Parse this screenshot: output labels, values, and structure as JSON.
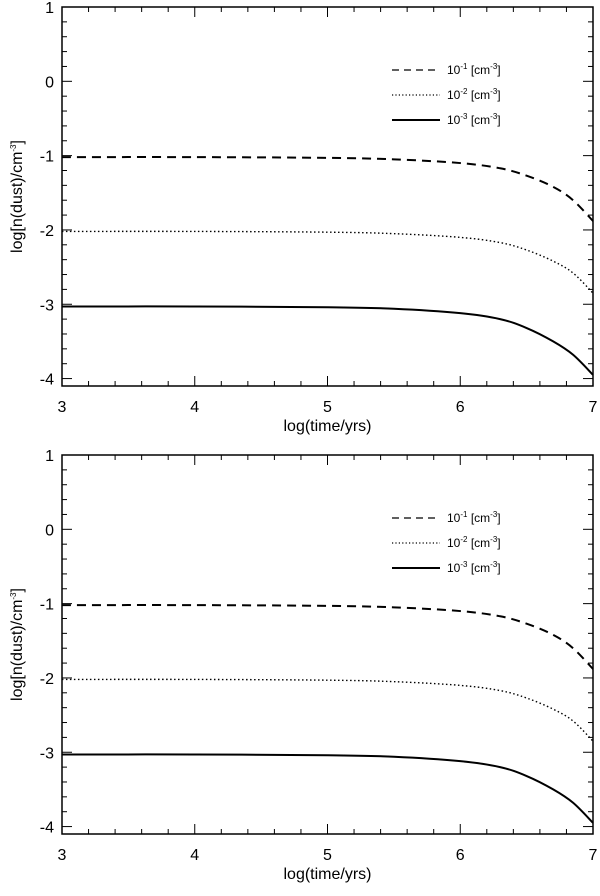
{
  "chart_data": [
    {
      "type": "line",
      "xlabel": "log(time/yrs)",
      "ylabel_parts": [
        "log[n(dust)/cm",
        "-3",
        "]"
      ],
      "xlim": [
        3,
        7
      ],
      "ylim": [
        -4.1,
        1
      ],
      "xticks": [
        "3",
        "4",
        "5",
        "6",
        "7"
      ],
      "yticks": [
        "1",
        "0",
        "-1",
        "-2",
        "-3",
        "-4"
      ],
      "grid": false,
      "legend_position": "top-right",
      "series": [
        {
          "name": "10 -1 [cm -3]",
          "legend_parts": [
            "10",
            "-1",
            " [cm",
            "-3",
            "]"
          ],
          "style": "dashed",
          "x": [
            3.0,
            4.0,
            5.0,
            5.5,
            6.0,
            6.3,
            6.5,
            6.7,
            6.85,
            7.0
          ],
          "y": [
            -1.02,
            -1.02,
            -1.03,
            -1.05,
            -1.1,
            -1.17,
            -1.27,
            -1.42,
            -1.6,
            -1.88
          ]
        },
        {
          "name": "10 -2 [cm -3]",
          "legend_parts": [
            "10",
            "-2",
            " [cm",
            "-3",
            "]"
          ],
          "style": "dotted",
          "x": [
            3.0,
            4.0,
            5.0,
            5.5,
            6.0,
            6.3,
            6.5,
            6.7,
            6.85,
            7.0
          ],
          "y": [
            -2.02,
            -2.02,
            -2.03,
            -2.05,
            -2.1,
            -2.17,
            -2.27,
            -2.42,
            -2.58,
            -2.85
          ]
        },
        {
          "name": "10 -3 [cm -3]",
          "legend_parts": [
            "10",
            "-3",
            " [cm",
            "-3",
            "]"
          ],
          "style": "solid",
          "x": [
            3.0,
            4.0,
            5.0,
            5.5,
            6.0,
            6.3,
            6.5,
            6.7,
            6.85,
            7.0
          ],
          "y": [
            -3.03,
            -3.03,
            -3.04,
            -3.06,
            -3.12,
            -3.2,
            -3.32,
            -3.5,
            -3.68,
            -3.95
          ]
        }
      ]
    },
    {
      "type": "line",
      "xlabel": "log(time/yrs)",
      "ylabel_parts": [
        "log[n(dust)/cm",
        "-3",
        "]"
      ],
      "xlim": [
        3,
        7
      ],
      "ylim": [
        -4.1,
        1
      ],
      "xticks": [
        "3",
        "4",
        "5",
        "6",
        "7"
      ],
      "yticks": [
        "1",
        "0",
        "-1",
        "-2",
        "-3",
        "-4"
      ],
      "grid": false,
      "legend_position": "top-right",
      "series": [
        {
          "name": "10 -1 [cm -3]",
          "legend_parts": [
            "10",
            "-1",
            " [cm",
            "-3",
            "]"
          ],
          "style": "dashed",
          "x": [
            3.0,
            4.0,
            5.0,
            5.5,
            6.0,
            6.3,
            6.5,
            6.7,
            6.85,
            7.0
          ],
          "y": [
            -1.02,
            -1.02,
            -1.03,
            -1.05,
            -1.1,
            -1.17,
            -1.27,
            -1.42,
            -1.6,
            -1.88
          ]
        },
        {
          "name": "10 -2 [cm -3]",
          "legend_parts": [
            "10",
            "-2",
            " [cm",
            "-3",
            "]"
          ],
          "style": "dotted",
          "x": [
            3.0,
            4.0,
            5.0,
            5.5,
            6.0,
            6.3,
            6.5,
            6.7,
            6.85,
            7.0
          ],
          "y": [
            -2.02,
            -2.02,
            -2.03,
            -2.05,
            -2.1,
            -2.17,
            -2.27,
            -2.42,
            -2.58,
            -2.85
          ]
        },
        {
          "name": "10 -3 [cm -3]",
          "legend_parts": [
            "10",
            "-3",
            " [cm",
            "-3",
            "]"
          ],
          "style": "solid",
          "x": [
            3.0,
            4.0,
            5.0,
            5.5,
            6.0,
            6.3,
            6.5,
            6.7,
            6.85,
            7.0
          ],
          "y": [
            -3.03,
            -3.03,
            -3.04,
            -3.06,
            -3.12,
            -3.2,
            -3.32,
            -3.5,
            -3.68,
            -3.95
          ]
        }
      ]
    }
  ]
}
